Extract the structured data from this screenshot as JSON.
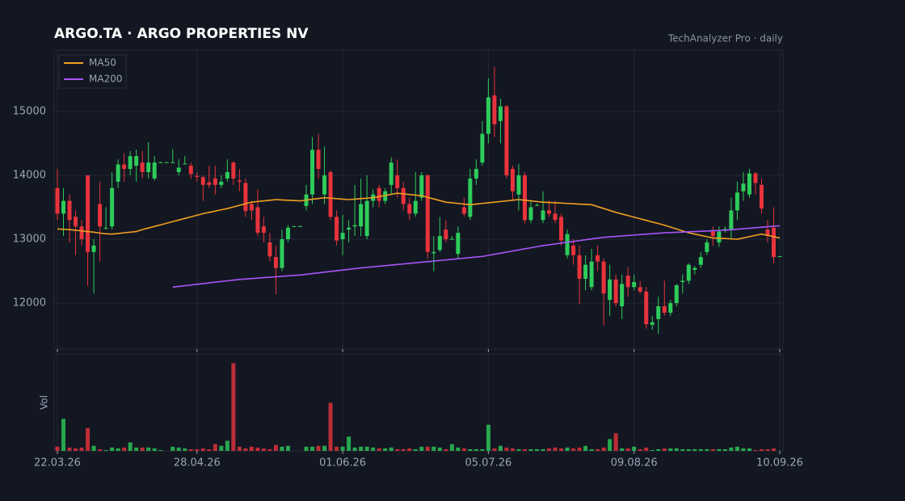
{
  "chart_data": {
    "type": "candlestick",
    "title": "ARGO.TA  ·  ARGO PROPERTIES NV",
    "subtitle": "TechAnalyzer Pro · daily",
    "categories": [
      "22.03.26",
      null,
      null,
      null,
      null,
      null,
      null,
      null,
      null,
      null,
      null,
      null,
      null,
      null,
      null,
      null,
      null,
      null,
      null,
      null,
      null,
      null,
      null,
      "28.04.26",
      null,
      null,
      null,
      null,
      null,
      null,
      null,
      null,
      null,
      null,
      null,
      null,
      null,
      null,
      null,
      null,
      null,
      null,
      null,
      null,
      null,
      null,
      null,
      "01.06.26",
      null,
      null,
      null,
      null,
      null,
      null,
      null,
      null,
      null,
      null,
      null,
      null,
      null,
      null,
      null,
      null,
      null,
      null,
      null,
      null,
      null,
      null,
      null,
      "05.07.26",
      null,
      null,
      null,
      null,
      null,
      null,
      null,
      null,
      null,
      null,
      null,
      null,
      null,
      null,
      null,
      null,
      null,
      null,
      null,
      null,
      null,
      null,
      null,
      "09.08.26",
      null,
      null,
      null,
      null,
      null,
      null,
      null,
      null,
      null,
      null,
      null,
      null,
      null,
      null,
      null,
      null,
      null,
      null,
      null,
      null,
      null,
      null,
      null,
      "10.09.26"
    ],
    "open": [
      13800,
      13400,
      13600,
      13350,
      13200,
      14000,
      12800,
      13550,
      13170,
      13200,
      13900,
      14170,
      14100,
      14150,
      14200,
      14050,
      13950,
      14200,
      14200,
      14200,
      14050,
      14180,
      14150,
      13990,
      13970,
      13890,
      13950,
      13850,
      13950,
      14200,
      13920,
      13880,
      13550,
      13500,
      13200,
      12950,
      12720,
      12550,
      13000,
      13200,
      13200,
      13520,
      13700,
      14400,
      13700,
      14050,
      13350,
      13000,
      13150,
      13200,
      13200,
      13050,
      13600,
      13800,
      13600,
      13850,
      14000,
      13800,
      13550,
      13400,
      13650,
      14000,
      12780,
      12830,
      13150,
      13000,
      12770,
      13500,
      13350,
      13950,
      14200,
      14650,
      15250,
      14850,
      15080,
      14100,
      13700,
      14000,
      13300,
      13530,
      13300,
      13450,
      13400,
      13350,
      12750,
      12900,
      12750,
      12380,
      12250,
      12750,
      12650,
      12050,
      12370,
      11950,
      12430,
      12250,
      12250,
      12180,
      11660,
      11750,
      11950,
      11850,
      12000,
      12330,
      12350,
      12520,
      12600,
      12800,
      13120,
      12950,
      13150,
      13150,
      13450,
      13750,
      13700,
      14030,
      13850,
      13150,
      13180,
      12730
    ],
    "high": [
      14100,
      13800,
      13700,
      13450,
      13300,
      14000,
      13000,
      13900,
      13500,
      14050,
      14250,
      14350,
      14380,
      14400,
      14380,
      14520,
      14300,
      14210,
      14210,
      14410,
      14250,
      14300,
      14200,
      14050,
      14000,
      14150,
      14150,
      14000,
      14250,
      14220,
      14100,
      13950,
      13600,
      13780,
      13350,
      13100,
      12900,
      13150,
      13220,
      13210,
      13210,
      13850,
      14600,
      14650,
      14450,
      14080,
      13450,
      13380,
      13300,
      13850,
      13950,
      14000,
      13780,
      13850,
      13800,
      14280,
      14250,
      13900,
      13650,
      14050,
      14050,
      14020,
      13050,
      13350,
      13300,
      13050,
      13200,
      13650,
      14100,
      14250,
      14850,
      15520,
      15700,
      15200,
      15100,
      14150,
      14180,
      14050,
      13600,
      13560,
      13750,
      13600,
      13600,
      13400,
      13150,
      13000,
      12900,
      12750,
      12850,
      12900,
      12700,
      12600,
      12450,
      12450,
      12560,
      12450,
      12350,
      12250,
      11800,
      12100,
      12350,
      12050,
      12300,
      12450,
      12620,
      12580,
      12800,
      13000,
      13200,
      13200,
      13200,
      13650,
      13900,
      14050,
      14100,
      14050,
      13950,
      13300,
      13500,
      12740
    ],
    "low": [
      13300,
      13050,
      12950,
      12750,
      12900,
      12270,
      12150,
      12650,
      13150,
      13150,
      13800,
      13900,
      14000,
      13900,
      13950,
      13950,
      13920,
      14190,
      14190,
      14190,
      14000,
      14170,
      13950,
      13900,
      13600,
      13800,
      13700,
      13800,
      13900,
      13850,
      13750,
      13350,
      13300,
      13050,
      12950,
      12650,
      12140,
      12500,
      12950,
      13190,
      13190,
      13450,
      13550,
      13950,
      13550,
      13300,
      12900,
      12750,
      12950,
      13050,
      13050,
      13000,
      13500,
      13500,
      13550,
      13700,
      13650,
      13450,
      13300,
      13350,
      13600,
      12700,
      12500,
      12800,
      12950,
      12990,
      12700,
      13350,
      13300,
      13850,
      14150,
      14500,
      14600,
      14500,
      13950,
      13600,
      13450,
      13250,
      13250,
      13520,
      13250,
      13350,
      13250,
      12900,
      12700,
      12600,
      11980,
      12200,
      12200,
      12500,
      11650,
      11800,
      11950,
      11750,
      12100,
      12200,
      12150,
      11600,
      11580,
      11520,
      11800,
      11800,
      11950,
      12150,
      12300,
      12450,
      12550,
      12750,
      12900,
      12880,
      13100,
      13000,
      13300,
      13600,
      13650,
      13700,
      13400,
      12950,
      12620,
      12720
    ],
    "close": [
      13400,
      13600,
      13300,
      13200,
      13000,
      12800,
      12900,
      13200,
      13180,
      13800,
      14170,
      14100,
      14300,
      14300,
      14050,
      14200,
      14200,
      14205,
      14205,
      14205,
      14120,
      14185,
      14020,
      13975,
      13850,
      13850,
      13850,
      13900,
      14050,
      13950,
      13900,
      13440,
      13450,
      13100,
      13100,
      12730,
      12550,
      13000,
      13180,
      13205,
      13205,
      13700,
      14400,
      14100,
      14000,
      13350,
      12980,
      13100,
      13180,
      13220,
      13550,
      13600,
      13700,
      13600,
      13750,
      14200,
      13800,
      13550,
      13400,
      13600,
      14000,
      12800,
      12800,
      13050,
      13000,
      13005,
      13100,
      13400,
      13950,
      14100,
      14650,
      15220,
      14800,
      15080,
      14000,
      13750,
      14000,
      13300,
      13500,
      13535,
      13450,
      13400,
      13300,
      12980,
      13080,
      12750,
      12380,
      12600,
      12650,
      12650,
      12150,
      12370,
      12000,
      12300,
      12250,
      12330,
      12180,
      11670,
      11700,
      11950,
      11850,
      12000,
      12280,
      12350,
      12600,
      12550,
      12720,
      12950,
      13050,
      13120,
      13160,
      13450,
      13730,
      13870,
      14030,
      13880,
      13480,
      13050,
      12720,
      12735
    ],
    "up_color": "#2ecc5a",
    "down_color": "#e8333c",
    "series": [
      {
        "name": "MA50",
        "color": "#f0a020",
        "values": [
          13160,
          13155,
          13150,
          13140,
          13130,
          13120,
          13110,
          13095,
          13085,
          13080,
          13090,
          13100,
          13110,
          13120,
          13150,
          13175,
          13200,
          13225,
          13250,
          13275,
          13300,
          13325,
          13350,
          13375,
          13400,
          13420,
          13440,
          13460,
          13480,
          13505,
          13530,
          13555,
          13580,
          13590,
          13600,
          13610,
          13620,
          13615,
          13610,
          13605,
          13600,
          13612,
          13625,
          13637,
          13650,
          13642,
          13635,
          13627,
          13620,
          13627,
          13635,
          13642,
          13650,
          13667,
          13685,
          13702,
          13720,
          13710,
          13700,
          13690,
          13680,
          13655,
          13630,
          13605,
          13580,
          13570,
          13560,
          13550,
          13540,
          13550,
          13560,
          13570,
          13580,
          13590,
          13600,
          13610,
          13620,
          13610,
          13600,
          13590,
          13580,
          13575,
          13570,
          13565,
          13560,
          13555,
          13550,
          13545,
          13540,
          13510,
          13480,
          13450,
          13420,
          13395,
          13370,
          13345,
          13320,
          13295,
          13270,
          13245,
          13220,
          13190,
          13160,
          13130,
          13100,
          13080,
          13060,
          13040,
          13020,
          13015,
          13010,
          13005,
          13000,
          13020,
          13040,
          13060,
          13080,
          13060,
          13040,
          13020
        ]
      },
      {
        "name": "MA200",
        "color": "#a855f7",
        "values": [
          null,
          null,
          null,
          null,
          null,
          null,
          null,
          null,
          null,
          null,
          null,
          null,
          null,
          null,
          null,
          null,
          null,
          null,
          null,
          12250,
          12261,
          12272,
          12283,
          12294,
          12305,
          12316,
          12327,
          12338,
          12349,
          12359,
          12370,
          12377,
          12384,
          12391,
          12398,
          12405,
          12412,
          12419,
          12426,
          12433,
          12440,
          12451,
          12462,
          12473,
          12484,
          12495,
          12506,
          12517,
          12528,
          12539,
          12550,
          12559,
          12568,
          12577,
          12586,
          12595,
          12604,
          12613,
          12622,
          12631,
          12640,
          12649,
          12658,
          12667,
          12676,
          12685,
          12694,
          12703,
          12712,
          12721,
          12730,
          12747,
          12764,
          12781,
          12798,
          12815,
          12832,
          12849,
          12866,
          12883,
          12900,
          12913,
          12926,
          12939,
          12952,
          12965,
          12978,
          12991,
          13004,
          13017,
          13030,
          13037,
          13044,
          13051,
          13058,
          13065,
          13072,
          13079,
          13086,
          13093,
          13100,
          13104,
          13108,
          13112,
          13116,
          13120,
          13124,
          13128,
          13132,
          13136,
          13140,
          13148,
          13156,
          13164,
          13172,
          13180,
          13188,
          13196,
          13204,
          13210
        ]
      }
    ],
    "ylim": [
      11280,
      15960
    ],
    "yticks": [
      12000,
      13000,
      14000,
      15000
    ],
    "grid": true,
    "legend": "upper left",
    "volume": {
      "label": "Vol",
      "ylim": [
        0,
        115
      ],
      "values": [
        5,
        38,
        4,
        3,
        4,
        27,
        6,
        2,
        1,
        4,
        3,
        4,
        10,
        4,
        4,
        4,
        3,
        1,
        0,
        5,
        4,
        3,
        2,
        2,
        3,
        2,
        8,
        6,
        12,
        104,
        5,
        3,
        5,
        4,
        3,
        2,
        7,
        5,
        6,
        0,
        0,
        5,
        5,
        6,
        6,
        57,
        5,
        5,
        17,
        4,
        5,
        5,
        4,
        3,
        3,
        4,
        2,
        2,
        3,
        2,
        5,
        5,
        5,
        4,
        2,
        8,
        4,
        3,
        2,
        2,
        2,
        31,
        3,
        6,
        4,
        3,
        2,
        2,
        2,
        2,
        2,
        3,
        4,
        3,
        4,
        3,
        4,
        6,
        2,
        2,
        4,
        14,
        21,
        3,
        3,
        5,
        2,
        4,
        1,
        2,
        3,
        3,
        3,
        2,
        2,
        2,
        2,
        2,
        2,
        2,
        2,
        4,
        5,
        3,
        3,
        1,
        2,
        2,
        3,
        0
      ]
    }
  }
}
